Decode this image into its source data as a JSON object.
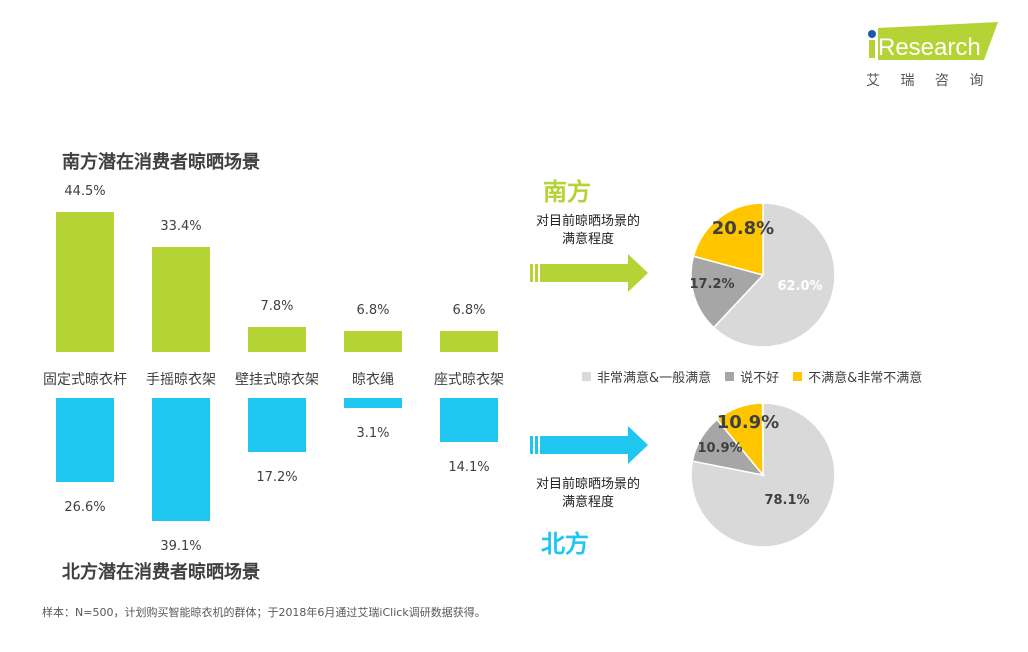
{
  "logo": {
    "text": "iResearch",
    "cn": "艾 瑞 咨 询"
  },
  "footnote": "样本：N=500，计划购买智能晾衣机的群体；于2018年6月通过艾瑞iClick调研数据获得。",
  "colors": {
    "south": "#b5d334",
    "north": "#1fc6f0",
    "satisfied": "#d9d9d9",
    "neutral": "#a6a6a6",
    "unsatisfied": "#ffc600"
  },
  "chart_data": [
    {
      "type": "bar",
      "title": "南方潜在消费者晾晒场景",
      "categories": [
        "固定式晾衣杆",
        "手摇晾衣架",
        "壁挂式晾衣架",
        "晾衣绳",
        "座式晾衣架"
      ],
      "values": [
        44.5,
        33.4,
        7.8,
        6.8,
        6.8
      ],
      "labels": [
        "44.5%",
        "33.4%",
        "7.8%",
        "6.8%",
        "6.8%"
      ]
    },
    {
      "type": "bar",
      "title": "北方潜在消费者晾晒场景",
      "categories": [
        "固定式晾衣杆",
        "手摇晾衣架",
        "壁挂式晾衣架",
        "晾衣绳",
        "座式晾衣架"
      ],
      "values": [
        26.6,
        39.1,
        17.2,
        3.1,
        14.1
      ],
      "labels": [
        "26.6%",
        "39.1%",
        "17.2%",
        "3.1%",
        "14.1%"
      ]
    },
    {
      "type": "pie",
      "region": "南方",
      "subtitle": "对目前晾晒场景的满意程度",
      "categories": [
        "非常满意&一般满意",
        "说不好",
        "不满意&非常不满意"
      ],
      "values": [
        62.0,
        17.2,
        20.8
      ],
      "labels": [
        "62.0%",
        "17.2%",
        "20.8%"
      ]
    },
    {
      "type": "pie",
      "region": "北方",
      "subtitle": "对目前晾晒场景的满意程度",
      "categories": [
        "非常满意&一般满意",
        "说不好",
        "不满意&非常不满意"
      ],
      "values": [
        78.1,
        10.9,
        10.9
      ],
      "labels": [
        "78.1%",
        "10.9%",
        "10.9%"
      ]
    }
  ],
  "legend": [
    "非常满意&一般满意",
    "说不好",
    "不满意&非常不满意"
  ]
}
